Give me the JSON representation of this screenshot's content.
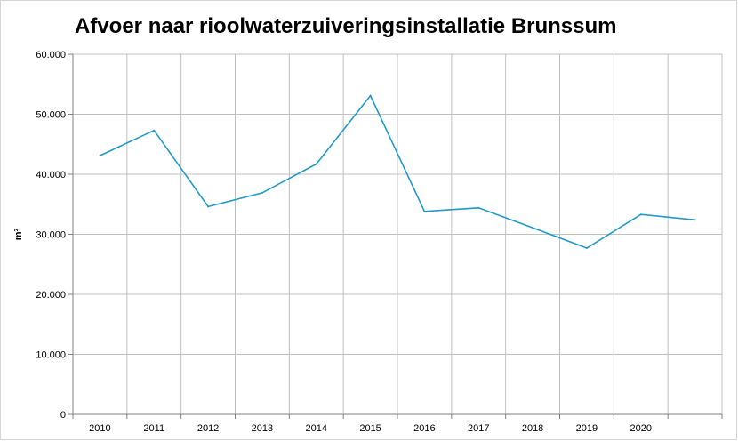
{
  "chart_data": {
    "type": "line",
    "title": "Afvoer naar rioolwaterzuiveringsinstallatie Brunssum",
    "xlabel": "",
    "ylabel": "m³",
    "categories": [
      "2010",
      "2011",
      "2012",
      "2013",
      "2014",
      "2015",
      "2016",
      "2017",
      "2018",
      "2019",
      "2020",
      ""
    ],
    "series": [
      {
        "values": [
          43100,
          47300,
          34600,
          36900,
          41700,
          53100,
          33800,
          34400,
          31100,
          27700,
          33300,
          32400
        ]
      }
    ],
    "ylim": [
      0,
      60000
    ],
    "yticks": [
      0,
      10000,
      20000,
      30000,
      40000,
      50000,
      60000
    ],
    "ytick_labels": [
      "0",
      "10.000",
      "20.000",
      "30.000",
      "40.000",
      "50.000",
      "60.000"
    ],
    "grid": true,
    "line_color": "#1f9ac9",
    "grid_color": "#c0c0c0"
  }
}
